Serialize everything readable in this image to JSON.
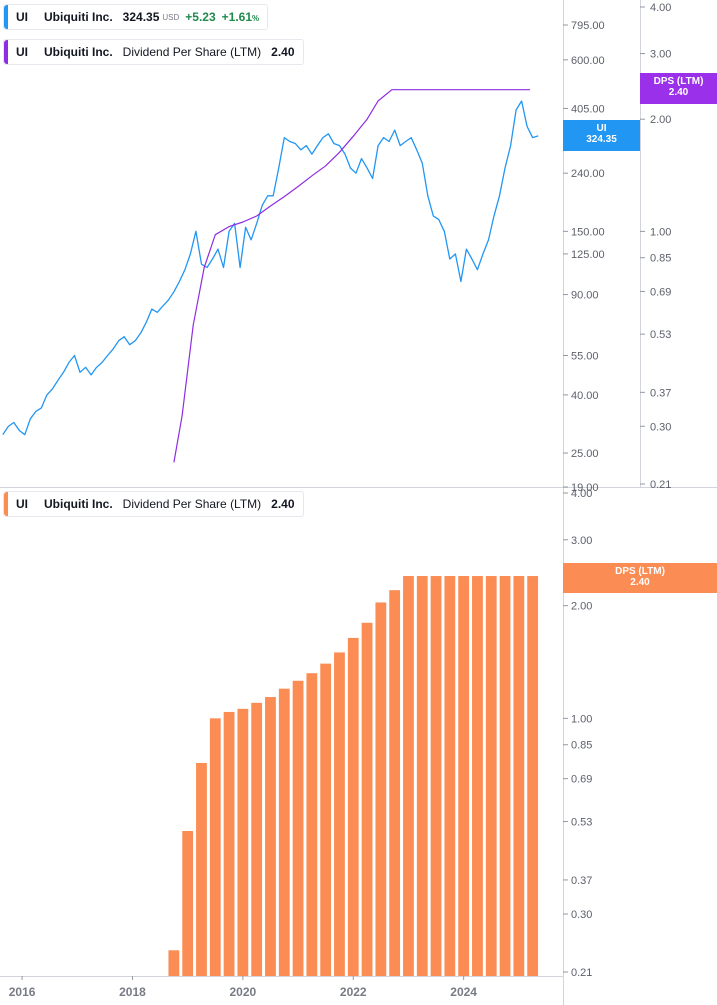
{
  "legends": {
    "top_price": {
      "ticker": "UI",
      "name": "Ubiquiti Inc.",
      "price": "324.35",
      "currency": "USD",
      "change": "+5.23",
      "change_pct": "+1.61",
      "pct_sign": "%",
      "color": "#2196f3"
    },
    "top_dps": {
      "ticker": "UI",
      "name": "Ubiquiti Inc.",
      "metric": "Dividend Per Share (LTM)",
      "value": "2.40",
      "color": "#8e2de2"
    },
    "bottom_dps": {
      "ticker": "UI",
      "name": "Ubiquiti Inc.",
      "metric": "Dividend Per Share (LTM)",
      "value": "2.40",
      "color": "#fb8c53"
    }
  },
  "tags": {
    "price": {
      "line1": "UI",
      "line2": "324.35",
      "color": "#2196f3"
    },
    "dps_top": {
      "line1": "DPS (LTM)",
      "line2": "2.40",
      "color": "#9b30ea"
    },
    "dps_bottom": {
      "line1": "DPS (LTM)",
      "line2": "2.40",
      "color": "#fb8c53"
    }
  },
  "chart_data": [
    {
      "type": "line",
      "panel": "top",
      "log_scale": true,
      "x_range": [
        2015.6,
        2025.8
      ],
      "x_ticks": [
        2016,
        2018,
        2020,
        2022,
        2024
      ],
      "series": [
        {
          "name": "Ubiquiti Inc.",
          "axis": "price",
          "color": "#2196f3",
          "x": [
            2015.65,
            2015.75,
            2015.85,
            2015.95,
            2016.05,
            2016.15,
            2016.25,
            2016.35,
            2016.45,
            2016.55,
            2016.65,
            2016.75,
            2016.85,
            2016.95,
            2017.05,
            2017.15,
            2017.25,
            2017.35,
            2017.45,
            2017.55,
            2017.65,
            2017.75,
            2017.85,
            2017.95,
            2018.05,
            2018.15,
            2018.25,
            2018.35,
            2018.45,
            2018.55,
            2018.65,
            2018.75,
            2018.85,
            2018.95,
            2019.05,
            2019.15,
            2019.25,
            2019.35,
            2019.45,
            2019.55,
            2019.65,
            2019.75,
            2019.85,
            2019.95,
            2020.05,
            2020.15,
            2020.25,
            2020.35,
            2020.45,
            2020.55,
            2020.65,
            2020.75,
            2020.85,
            2020.95,
            2021.05,
            2021.15,
            2021.25,
            2021.35,
            2021.45,
            2021.55,
            2021.65,
            2021.75,
            2021.85,
            2021.95,
            2022.05,
            2022.15,
            2022.25,
            2022.35,
            2022.45,
            2022.55,
            2022.65,
            2022.75,
            2022.85,
            2022.95,
            2023.05,
            2023.15,
            2023.25,
            2023.35,
            2023.45,
            2023.55,
            2023.65,
            2023.75,
            2023.85,
            2023.95,
            2024.05,
            2024.15,
            2024.25,
            2024.35,
            2024.45,
            2024.55,
            2024.65,
            2024.75,
            2024.85,
            2024.95,
            2025.05,
            2025.15,
            2025.25,
            2025.35
          ],
          "y": [
            29,
            31,
            32,
            30,
            29,
            33,
            35,
            36,
            40,
            42,
            45,
            48,
            52,
            55,
            48,
            50,
            47,
            50,
            52,
            55,
            58,
            62,
            64,
            60,
            62,
            66,
            72,
            80,
            78,
            82,
            86,
            92,
            100,
            110,
            125,
            150,
            115,
            112,
            120,
            130,
            112,
            150,
            160,
            112,
            155,
            140,
            160,
            185,
            200,
            200,
            250,
            320,
            310,
            305,
            290,
            300,
            280,
            300,
            320,
            330,
            305,
            300,
            280,
            250,
            240,
            270,
            250,
            230,
            300,
            320,
            310,
            340,
            300,
            310,
            320,
            290,
            260,
            200,
            170,
            165,
            150,
            120,
            125,
            100,
            130,
            120,
            110,
            125,
            140,
            170,
            200,
            250,
            300,
            400,
            430,
            350,
            320,
            324.35
          ]
        },
        {
          "name": "Dividend Per Share (LTM)",
          "axis": "dps",
          "color": "#8e2de2",
          "x": [
            2018.75,
            2018.9,
            2019.1,
            2019.3,
            2019.5,
            2019.75,
            2020.0,
            2020.25,
            2020.5,
            2020.75,
            2021.0,
            2021.25,
            2021.5,
            2021.75,
            2022.0,
            2022.25,
            2022.45,
            2022.7,
            2023.0,
            2025.2
          ],
          "y": [
            0.24,
            0.32,
            0.56,
            0.8,
            0.98,
            1.03,
            1.06,
            1.1,
            1.17,
            1.24,
            1.32,
            1.41,
            1.5,
            1.63,
            1.8,
            2.0,
            2.24,
            2.4,
            2.4,
            2.4
          ]
        }
      ],
      "price_axis_ticks": [
        "795.00",
        "600.00",
        "405.00",
        "240.00",
        "150.00",
        "125.00",
        "90.00",
        "55.00",
        "40.00",
        "25.00",
        "19.00"
      ],
      "dps_axis_ticks": [
        "4.00",
        "3.00",
        "2.00",
        "1.00",
        "0.85",
        "0.69",
        "0.53",
        "0.37",
        "0.30",
        "0.21"
      ]
    },
    {
      "type": "bar",
      "panel": "bottom",
      "log_scale": true,
      "x_range": [
        2015.6,
        2025.8
      ],
      "x_ticks": [
        2016,
        2018,
        2020,
        2022,
        2024
      ],
      "series": [
        {
          "name": "Dividend Per Share (LTM)",
          "color": "#fb8c53",
          "x": [
            2018.75,
            2019.0,
            2019.25,
            2019.5,
            2019.75,
            2020.0,
            2020.25,
            2020.5,
            2020.75,
            2021.0,
            2021.25,
            2021.5,
            2021.75,
            2022.0,
            2022.25,
            2022.5,
            2022.75,
            2023.0,
            2023.25,
            2023.5,
            2023.75,
            2024.0,
            2024.25,
            2024.5,
            2024.75,
            2025.0,
            2025.25
          ],
          "y": [
            0.24,
            0.5,
            0.76,
            1.0,
            1.04,
            1.06,
            1.1,
            1.14,
            1.2,
            1.26,
            1.32,
            1.4,
            1.5,
            1.64,
            1.8,
            2.04,
            2.2,
            2.4,
            2.4,
            2.4,
            2.4,
            2.4,
            2.4,
            2.4,
            2.4,
            2.4,
            2.4
          ]
        }
      ],
      "dps_axis_ticks": [
        "4.00",
        "3.00",
        "2.00",
        "1.00",
        "0.85",
        "0.69",
        "0.53",
        "0.37",
        "0.30",
        "0.21"
      ]
    }
  ]
}
